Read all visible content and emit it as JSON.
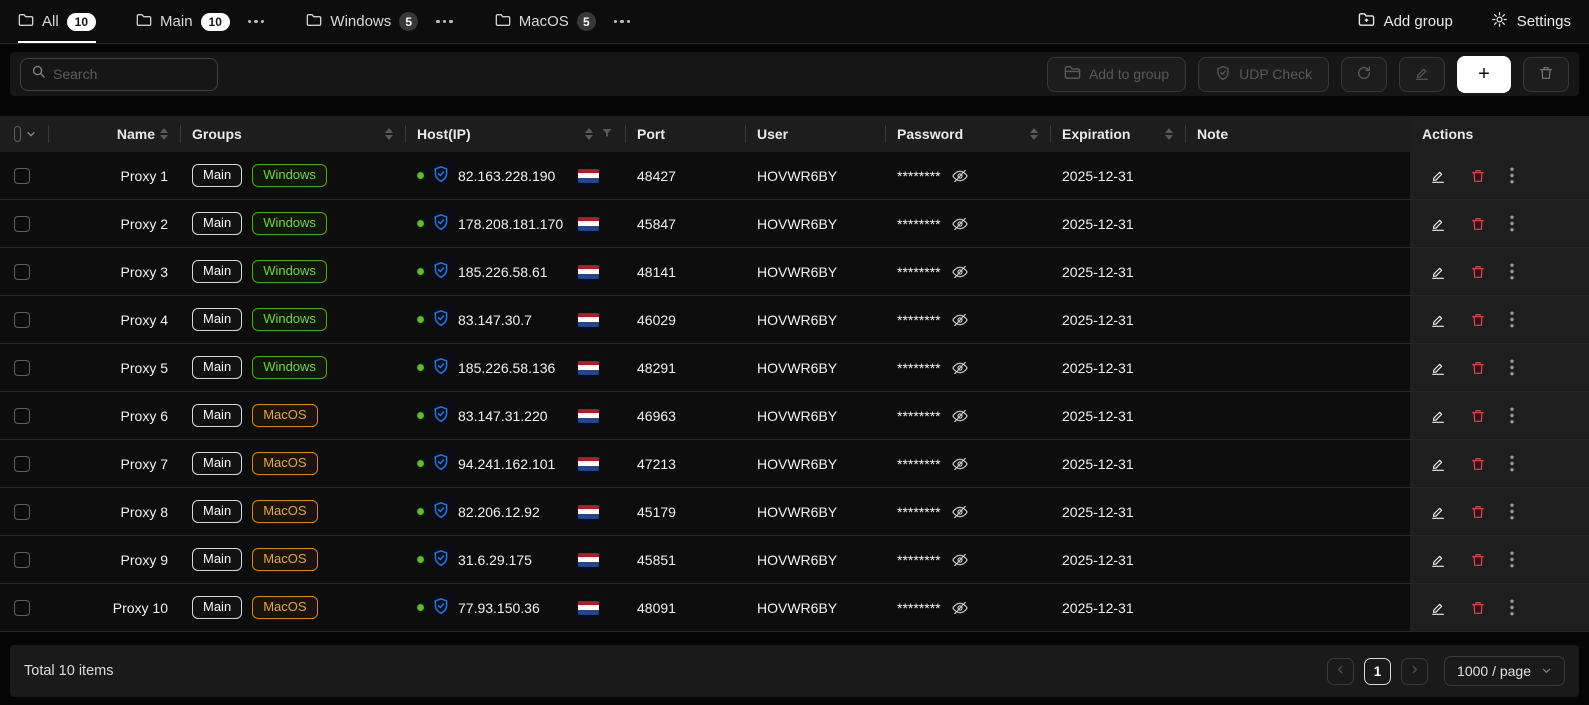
{
  "tabbar": {
    "tabs": [
      {
        "label": "All",
        "count": "10",
        "badge": "light",
        "active": true,
        "menu": false
      },
      {
        "label": "Main",
        "count": "10",
        "badge": "light",
        "active": false,
        "menu": true
      },
      {
        "label": "Windows",
        "count": "5",
        "badge": "dark",
        "active": false,
        "menu": true
      },
      {
        "label": "MacOS",
        "count": "5",
        "badge": "dark",
        "active": false,
        "menu": true
      }
    ],
    "add_group_label": "Add group",
    "settings_label": "Settings"
  },
  "toolbar": {
    "search_placeholder": "Search",
    "add_to_group_label": "Add to group",
    "udp_check_label": "UDP Check",
    "add_label": "+"
  },
  "table": {
    "headers": {
      "name": "Name",
      "groups": "Groups",
      "host": "Host(IP)",
      "port": "Port",
      "user": "User",
      "password": "Password",
      "expiration": "Expiration",
      "note": "Note",
      "actions": "Actions"
    },
    "rows": [
      {
        "name": "Proxy 1",
        "groups": [
          "Main",
          "Windows"
        ],
        "ip": "82.163.228.190",
        "port": "48427",
        "user": "HOVWR6BY",
        "password": "********",
        "expiration": "2025-12-31",
        "note": ""
      },
      {
        "name": "Proxy 2",
        "groups": [
          "Main",
          "Windows"
        ],
        "ip": "178.208.181.170",
        "port": "45847",
        "user": "HOVWR6BY",
        "password": "********",
        "expiration": "2025-12-31",
        "note": ""
      },
      {
        "name": "Proxy 3",
        "groups": [
          "Main",
          "Windows"
        ],
        "ip": "185.226.58.61",
        "port": "48141",
        "user": "HOVWR6BY",
        "password": "********",
        "expiration": "2025-12-31",
        "note": ""
      },
      {
        "name": "Proxy 4",
        "groups": [
          "Main",
          "Windows"
        ],
        "ip": "83.147.30.7",
        "port": "46029",
        "user": "HOVWR6BY",
        "password": "********",
        "expiration": "2025-12-31",
        "note": ""
      },
      {
        "name": "Proxy 5",
        "groups": [
          "Main",
          "Windows"
        ],
        "ip": "185.226.58.136",
        "port": "48291",
        "user": "HOVWR6BY",
        "password": "********",
        "expiration": "2025-12-31",
        "note": ""
      },
      {
        "name": "Proxy 6",
        "groups": [
          "Main",
          "MacOS"
        ],
        "ip": "83.147.31.220",
        "port": "46963",
        "user": "HOVWR6BY",
        "password": "********",
        "expiration": "2025-12-31",
        "note": ""
      },
      {
        "name": "Proxy 7",
        "groups": [
          "Main",
          "MacOS"
        ],
        "ip": "94.241.162.101",
        "port": "47213",
        "user": "HOVWR6BY",
        "password": "********",
        "expiration": "2025-12-31",
        "note": ""
      },
      {
        "name": "Proxy 8",
        "groups": [
          "Main",
          "MacOS"
        ],
        "ip": "82.206.12.92",
        "port": "45179",
        "user": "HOVWR6BY",
        "password": "********",
        "expiration": "2025-12-31",
        "note": ""
      },
      {
        "name": "Proxy 9",
        "groups": [
          "Main",
          "MacOS"
        ],
        "ip": "31.6.29.175",
        "port": "45851",
        "user": "HOVWR6BY",
        "password": "********",
        "expiration": "2025-12-31",
        "note": ""
      },
      {
        "name": "Proxy 10",
        "groups": [
          "Main",
          "MacOS"
        ],
        "ip": "77.93.150.36",
        "port": "48091",
        "user": "HOVWR6BY",
        "password": "********",
        "expiration": "2025-12-31",
        "note": ""
      }
    ]
  },
  "footer": {
    "total": "Total 10 items",
    "current_page": "1",
    "page_size": "1000 / page"
  },
  "colors": {
    "online_dot": "#52c41a",
    "shield_blue": "#1677ff",
    "tag_windows": "#49aa19",
    "tag_macos": "#d48806",
    "danger": "#e84749",
    "flag_netherlands": [
      "#AE1C28",
      "#FFFFFF",
      "#21468B"
    ]
  }
}
